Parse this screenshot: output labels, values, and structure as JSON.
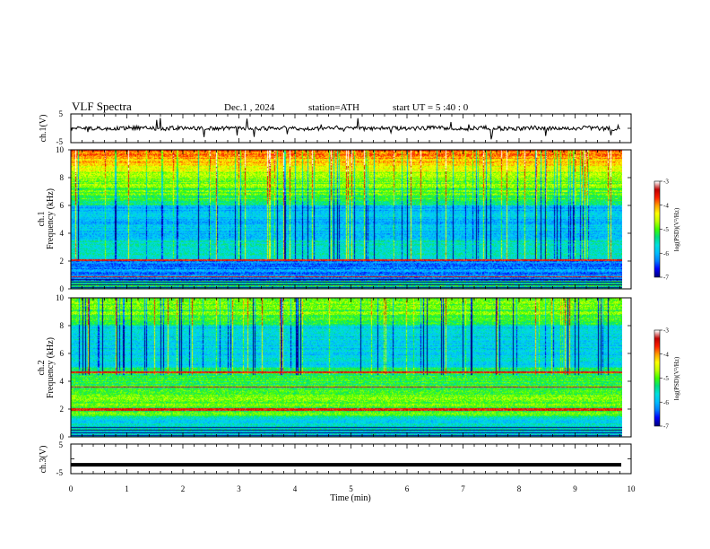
{
  "header": {
    "title": "VLF  Spectra",
    "date": "Dec.1  , 2024",
    "station": "station=ATH",
    "start_ut": "start  UT  =   5  :40 : 0"
  },
  "colors": {
    "spectrogram_scale": [
      "#000080",
      "#0000ff",
      "#0080ff",
      "#00c0ff",
      "#00e0e0",
      "#00e080",
      "#40ff00",
      "#c0ff00",
      "#ffff00",
      "#ffa000",
      "#ff2000",
      "#c00000",
      "#ffffff"
    ],
    "trace": "#000000"
  },
  "chart_data": [
    {
      "type": "line",
      "panel": "ch1-waveform",
      "ylabel": "ch.1(V)",
      "yticks": [
        "5",
        "-5"
      ],
      "ylim": [
        -5,
        5
      ],
      "xlim": [
        0,
        10
      ],
      "note_values": "noisy trace around 0 V, amplitude roughly ±1 V with occasional spikes"
    },
    {
      "type": "heatmap",
      "panel": "ch1-spectrogram",
      "ylabel_top": "ch.1",
      "ylabel": "Frequency  (kHz)",
      "yticks": [
        "0",
        "2",
        "4",
        "6",
        "8",
        "10"
      ],
      "ylim": [
        0,
        10
      ],
      "xlim": [
        0,
        10
      ],
      "colorbar": {
        "label": "log(PSD)(V²/Hz)",
        "ticks": [
          "-3",
          "-4",
          "-5",
          "-6",
          "-7"
        ],
        "range": [
          -7,
          -3
        ]
      }
    },
    {
      "type": "heatmap",
      "panel": "ch2-spectrogram",
      "ylabel_top": "ch.2",
      "ylabel": "Frequency  (kHz)",
      "yticks": [
        "0",
        "2",
        "4",
        "6",
        "8",
        "10"
      ],
      "ylim": [
        0,
        10
      ],
      "xlim": [
        0,
        10
      ],
      "colorbar": {
        "label": "log(PSD)(V²/Hz)",
        "ticks": [
          "-3",
          "-4",
          "-5",
          "-6",
          "-7"
        ],
        "range": [
          -7,
          -3
        ]
      }
    },
    {
      "type": "line",
      "panel": "ch3-waveform",
      "ylabel": "ch.3(V)",
      "yticks": [
        "5",
        "-5"
      ],
      "ylim": [
        -5,
        5
      ],
      "xlim": [
        0,
        10
      ],
      "level": -2
    }
  ],
  "xaxis": {
    "label": "Time  (min)",
    "ticks": [
      "0",
      "1",
      "2",
      "3",
      "4",
      "5",
      "6",
      "7",
      "8",
      "9",
      "10"
    ]
  }
}
